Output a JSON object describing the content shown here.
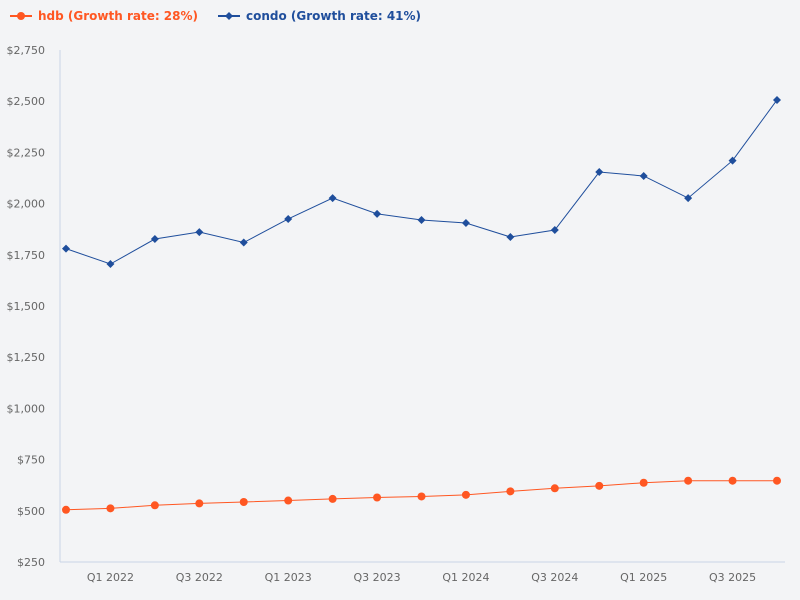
{
  "chart_data": {
    "type": "line",
    "title": "",
    "xlabel": "",
    "ylabel": "",
    "x": [
      "Q4 2021",
      "Q1 2022",
      "Q2 2022",
      "Q3 2022",
      "Q4 2022",
      "Q1 2023",
      "Q2 2023",
      "Q3 2023",
      "Q4 2023",
      "Q1 2024",
      "Q2 2024",
      "Q3 2024",
      "Q4 2024",
      "Q1 2025",
      "Q2 2025",
      "Q3 2025",
      "Q4 2025"
    ],
    "x_tick_labels": [
      "Q1 2022",
      "Q3 2022",
      "Q1 2023",
      "Q3 2023",
      "Q1 2024",
      "Q3 2024",
      "Q1 2025",
      "Q3 2025"
    ],
    "ylim": [
      250,
      2750
    ],
    "y_ticks": [
      250,
      500,
      750,
      1000,
      1250,
      1500,
      1750,
      2000,
      2250,
      2500,
      2750
    ],
    "y_tick_labels": [
      "$250",
      "$500",
      "$750",
      "$1,000",
      "$1,250",
      "$1,500",
      "$1,750",
      "$2,000",
      "$2,250",
      "$2,500",
      "$2,750"
    ],
    "grid": false,
    "legend_position": "top-left",
    "series": [
      {
        "name": "hdb",
        "legend": "hdb (Growth rate: 28%)",
        "color": "#ff5722",
        "marker": "circle",
        "values": [
          505,
          512,
          527,
          536,
          543,
          550,
          558,
          565,
          570,
          578,
          595,
          610,
          622,
          637,
          647,
          647,
          647
        ]
      },
      {
        "name": "condo",
        "legend": "condo (Growth rate: 41%)",
        "color": "#1f4e9c",
        "marker": "diamond",
        "values": [
          1780,
          1705,
          1827,
          1861,
          1810,
          1925,
          2027,
          1950,
          1920,
          1905,
          1837,
          1871,
          2154,
          2135,
          2027,
          2210,
          2506
        ]
      }
    ]
  }
}
